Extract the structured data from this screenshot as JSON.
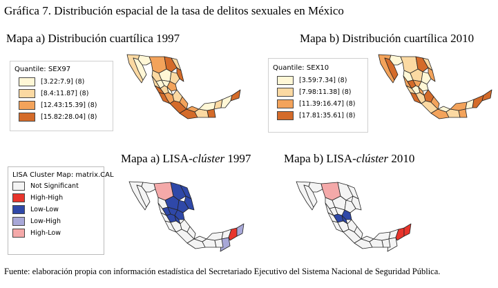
{
  "figure_title": "Gráfica 7. Distribución espacial de la tasa de delitos sexuales en México",
  "panels": {
    "a1997": {
      "title": "Mapa a) Distribución cuartílica 1997",
      "legend_title": "Quantile: SEX97",
      "items": [
        {
          "label": "[3.22:7.9]",
          "count": "(8)",
          "color": "#fff7d6"
        },
        {
          "label": "[8.4:11.87]",
          "count": "(8)",
          "color": "#fbd9a2"
        },
        {
          "label": "[12.43:15.39]",
          "count": "(8)",
          "color": "#f3a35b"
        },
        {
          "label": "[15.82:28.04]",
          "count": "(8)",
          "color": "#d46b2a"
        }
      ]
    },
    "b2010": {
      "title": "Mapa b) Distribución cuartílica 2010",
      "legend_title": "Quantile: SEX10",
      "items": [
        {
          "label": "[3.59:7.34]",
          "count": "(8)",
          "color": "#fff7d6"
        },
        {
          "label": "[7.98:11.38]",
          "count": "(8)",
          "color": "#fbd9a2"
        },
        {
          "label": "[11.39:16.47]",
          "count": "(8)",
          "color": "#f3a35b"
        },
        {
          "label": "[17.81:35.61]",
          "count": "(8)",
          "color": "#d46b2a"
        }
      ]
    },
    "lisa1997": {
      "title_prefix": "Mapa a) LISA-",
      "title_em": "clúster",
      "title_suffix": " 1997"
    },
    "lisa2010": {
      "title_prefix": "Mapa b) LISA-",
      "title_em": "clúster",
      "title_suffix": " 2010"
    }
  },
  "lisa_legend": {
    "title": "LISA Cluster Map: matrix.CAL",
    "items": [
      {
        "label": "Not Significant",
        "color": "#f4f4f4"
      },
      {
        "label": "High-High",
        "color": "#e8352c"
      },
      {
        "label": "Low-Low",
        "color": "#2f48a8"
      },
      {
        "label": "Low-High",
        "color": "#a8a8d8"
      },
      {
        "label": "High-Low",
        "color": "#f4a9a9"
      }
    ]
  },
  "source": "Fuente: elaboración propia con información estadística del Secretariado Ejecutivo del Sistema Nacional de Seguridad Pública."
}
